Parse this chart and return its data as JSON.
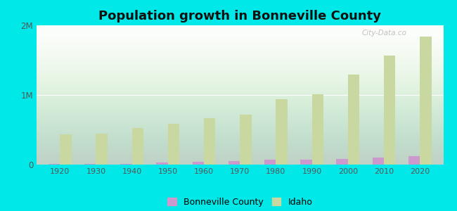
{
  "title": "Population growth in Bonneville County",
  "years": [
    1920,
    1930,
    1940,
    1950,
    1960,
    1970,
    1980,
    1990,
    2000,
    2010,
    2020
  ],
  "bonneville_county": [
    10142,
    10280,
    11802,
    27479,
    37554,
    52927,
    65980,
    72207,
    82522,
    104234,
    119062
  ],
  "idaho": [
    431866,
    445032,
    524873,
    588637,
    667191,
    712567,
    943935,
    1006749,
    1293953,
    1567582,
    1839106
  ],
  "ylim": [
    0,
    2000000
  ],
  "yticks": [
    0,
    1000000,
    2000000
  ],
  "ytick_labels": [
    "0",
    "1M",
    "2M"
  ],
  "bar_width": 0.32,
  "idaho_color": "#c8d8a0",
  "bonneville_color": "#cc99cc",
  "outer_bg": "#00e8e8",
  "plot_bg_top": "#e8f5e0",
  "plot_bg_bottom": "#f8fff4",
  "watermark": "City-Data.co",
  "legend_bonneville": "Bonneville County",
  "legend_idaho": "Idaho",
  "xlim_left": -0.65,
  "xlim_right": 10.65
}
